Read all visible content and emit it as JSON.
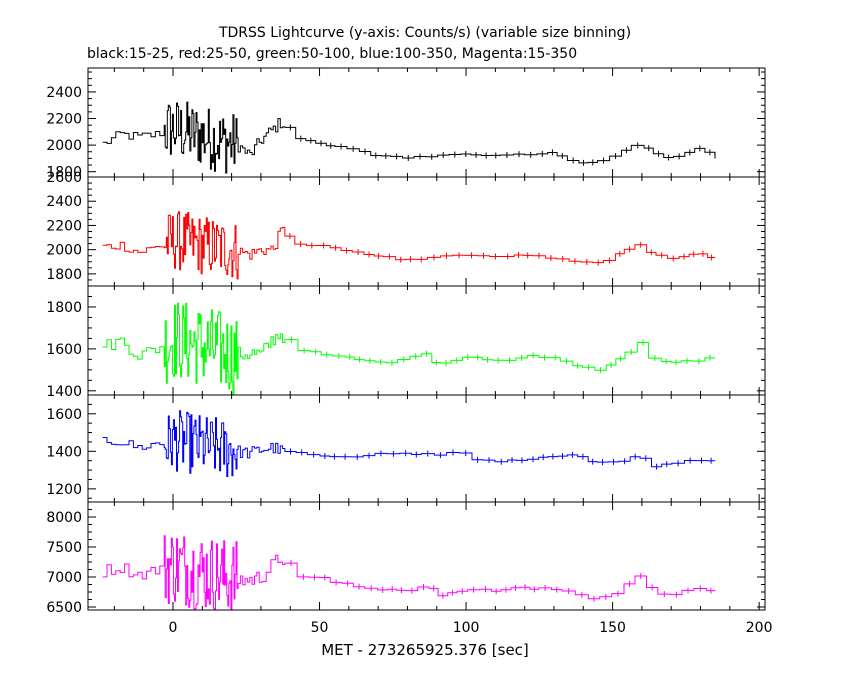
{
  "figure": {
    "title": "TDRSS Lightcurve (y-axis: Counts/s) (variable size binning)",
    "subtitle": "black:15-25, red:25-50, green:50-100, blue:100-350, Magenta:15-350"
  },
  "chart_data": [
    {
      "type": "line",
      "panel": 1,
      "series": [
        {
          "color": "#000000"
        }
      ],
      "ylim": [
        1760,
        2580
      ],
      "y_ticks": [
        1800,
        2000,
        2200,
        2400
      ],
      "x_ticks": [
        0,
        50,
        100,
        150,
        200
      ],
      "x_tick_labels": [
        "",
        "",
        "",
        "",
        ""
      ],
      "xlim": [
        -29,
        202
      ],
      "profile": {
        "quiet_points": [
          [
            -24,
            2010
          ],
          [
            -18,
            2080
          ],
          [
            -12,
            2060
          ],
          [
            -6,
            2080
          ],
          [
            -2,
            2120
          ],
          [
            0,
            2120
          ],
          [
            22,
            2000
          ],
          [
            26,
            1920
          ],
          [
            30,
            2040
          ],
          [
            34,
            2120
          ],
          [
            37,
            2180
          ],
          [
            40,
            2050
          ],
          [
            50,
            2010
          ],
          [
            60,
            1960
          ],
          [
            70,
            1920
          ],
          [
            80,
            1900
          ],
          [
            90,
            1930
          ],
          [
            100,
            1930
          ],
          [
            110,
            1920
          ],
          [
            120,
            1930
          ],
          [
            130,
            1940
          ],
          [
            136,
            1870
          ],
          [
            145,
            1880
          ],
          [
            152,
            1950
          ],
          [
            158,
            2020
          ],
          [
            163,
            1930
          ],
          [
            170,
            1900
          ],
          [
            178,
            1970
          ],
          [
            185,
            1920
          ]
        ],
        "burst_amp": 220,
        "step": 3
      }
    },
    {
      "type": "line",
      "panel": 2,
      "series": [
        {
          "color": "#ff0000"
        }
      ],
      "ylim": [
        1700,
        2600
      ],
      "y_ticks": [
        1800,
        2000,
        2200,
        2400,
        2600
      ],
      "x_ticks": [
        0,
        50,
        100,
        150,
        200
      ],
      "x_tick_labels": [
        "",
        "",
        "",
        "",
        ""
      ],
      "xlim": [
        -29,
        202
      ],
      "profile": {
        "quiet_points": [
          [
            -24,
            2020
          ],
          [
            -18,
            2040
          ],
          [
            -12,
            1980
          ],
          [
            -6,
            2020
          ],
          [
            -2,
            2060
          ],
          [
            0,
            2080
          ],
          [
            22,
            1990
          ],
          [
            26,
            1960
          ],
          [
            30,
            2000
          ],
          [
            34,
            2000
          ],
          [
            37,
            2170
          ],
          [
            40,
            2040
          ],
          [
            50,
            2030
          ],
          [
            60,
            1980
          ],
          [
            70,
            1950
          ],
          [
            80,
            1910
          ],
          [
            90,
            1940
          ],
          [
            100,
            1960
          ],
          [
            110,
            1940
          ],
          [
            120,
            1960
          ],
          [
            130,
            1930
          ],
          [
            136,
            1890
          ],
          [
            145,
            1900
          ],
          [
            152,
            1970
          ],
          [
            158,
            2050
          ],
          [
            163,
            1960
          ],
          [
            170,
            1930
          ],
          [
            178,
            1980
          ],
          [
            185,
            1920
          ]
        ],
        "burst_amp": 230,
        "step": 3
      }
    },
    {
      "type": "line",
      "panel": 3,
      "series": [
        {
          "color": "#00ff00"
        }
      ],
      "ylim": [
        1380,
        1900
      ],
      "y_ticks": [
        1400,
        1600,
        1800
      ],
      "x_ticks": [
        0,
        50,
        100,
        150,
        200
      ],
      "x_tick_labels": [
        "",
        "",
        "",
        "",
        ""
      ],
      "xlim": [
        -29,
        202
      ],
      "profile": {
        "quiet_points": [
          [
            -24,
            1610
          ],
          [
            -18,
            1640
          ],
          [
            -12,
            1570
          ],
          [
            -6,
            1600
          ],
          [
            -2,
            1630
          ],
          [
            0,
            1650
          ],
          [
            22,
            1570
          ],
          [
            26,
            1580
          ],
          [
            30,
            1570
          ],
          [
            34,
            1650
          ],
          [
            37,
            1680
          ],
          [
            40,
            1590
          ],
          [
            50,
            1580
          ],
          [
            60,
            1560
          ],
          [
            70,
            1530
          ],
          [
            80,
            1570
          ],
          [
            85,
            1580
          ],
          [
            90,
            1520
          ],
          [
            100,
            1560
          ],
          [
            110,
            1540
          ],
          [
            120,
            1570
          ],
          [
            130,
            1560
          ],
          [
            136,
            1520
          ],
          [
            145,
            1490
          ],
          [
            152,
            1560
          ],
          [
            158,
            1640
          ],
          [
            163,
            1540
          ],
          [
            170,
            1530
          ],
          [
            178,
            1550
          ],
          [
            185,
            1550
          ]
        ],
        "burst_amp": 180,
        "step": 3
      }
    },
    {
      "type": "line",
      "panel": 4,
      "series": [
        {
          "color": "#0000ff"
        }
      ],
      "ylim": [
        1130,
        1700
      ],
      "y_ticks": [
        1200,
        1400,
        1600
      ],
      "x_ticks": [
        0,
        50,
        100,
        150,
        200
      ],
      "x_tick_labels": [
        "",
        "",
        "",
        "",
        ""
      ],
      "xlim": [
        -29,
        202
      ],
      "profile": {
        "quiet_points": [
          [
            -24,
            1460
          ],
          [
            -18,
            1450
          ],
          [
            -12,
            1420
          ],
          [
            -6,
            1440
          ],
          [
            -2,
            1440
          ],
          [
            0,
            1460
          ],
          [
            22,
            1400
          ],
          [
            26,
            1390
          ],
          [
            30,
            1410
          ],
          [
            34,
            1420
          ],
          [
            37,
            1400
          ],
          [
            40,
            1390
          ],
          [
            50,
            1380
          ],
          [
            60,
            1370
          ],
          [
            70,
            1390
          ],
          [
            80,
            1390
          ],
          [
            90,
            1380
          ],
          [
            97,
            1400
          ],
          [
            100,
            1350
          ],
          [
            110,
            1350
          ],
          [
            120,
            1360
          ],
          [
            130,
            1370
          ],
          [
            136,
            1390
          ],
          [
            140,
            1350
          ],
          [
            150,
            1340
          ],
          [
            158,
            1380
          ],
          [
            163,
            1320
          ],
          [
            170,
            1340
          ],
          [
            178,
            1350
          ],
          [
            185,
            1350
          ]
        ],
        "burst_amp": 150,
        "step": 3
      }
    },
    {
      "type": "line",
      "panel": 5,
      "series": [
        {
          "color": "#ff00ff"
        }
      ],
      "ylim": [
        6450,
        8250
      ],
      "y_ticks": [
        6500,
        7000,
        7500,
        8000
      ],
      "x_ticks": [
        0,
        50,
        100,
        150,
        200
      ],
      "x_tick_labels": [
        "0",
        "50",
        "100",
        "150",
        "200"
      ],
      "xlim": [
        -29,
        202
      ],
      "profile": {
        "quiet_points": [
          [
            -24,
            7100
          ],
          [
            -18,
            7170
          ],
          [
            -12,
            7040
          ],
          [
            -6,
            7120
          ],
          [
            -2,
            7180
          ],
          [
            0,
            7200
          ],
          [
            22,
            6950
          ],
          [
            26,
            6950
          ],
          [
            30,
            7000
          ],
          [
            34,
            7200
          ],
          [
            37,
            7350
          ],
          [
            40,
            7000
          ],
          [
            50,
            6980
          ],
          [
            60,
            6850
          ],
          [
            70,
            6800
          ],
          [
            80,
            6750
          ],
          [
            86,
            6900
          ],
          [
            90,
            6700
          ],
          [
            100,
            6800
          ],
          [
            110,
            6780
          ],
          [
            120,
            6820
          ],
          [
            130,
            6800
          ],
          [
            136,
            6700
          ],
          [
            143,
            6600
          ],
          [
            150,
            6750
          ],
          [
            158,
            7050
          ],
          [
            163,
            6750
          ],
          [
            170,
            6700
          ],
          [
            178,
            6820
          ],
          [
            185,
            6750
          ]
        ],
        "burst_amp": 600,
        "step": 3
      }
    }
  ],
  "axes": {
    "xlabel": "MET - 273265925.376 [sec]"
  }
}
